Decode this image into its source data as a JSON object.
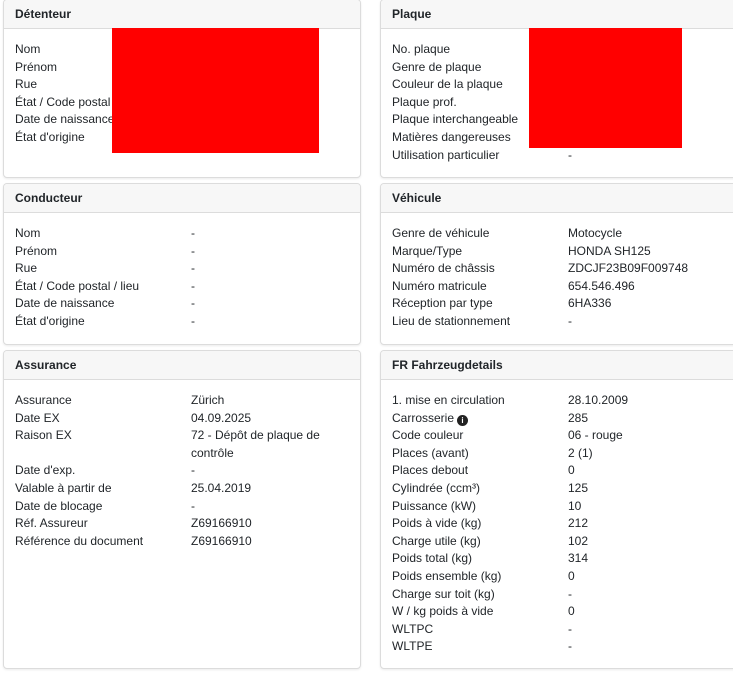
{
  "detenteur": {
    "title": "Détenteur",
    "rows": [
      {
        "label": "Nom",
        "value": ""
      },
      {
        "label": "Prénom",
        "value": ""
      },
      {
        "label": "Rue",
        "value": ""
      },
      {
        "label": "État / Code postal / lieu",
        "value": ""
      },
      {
        "label": "Date de naissance",
        "value": ""
      },
      {
        "label": "État d'origine",
        "value": ""
      }
    ]
  },
  "plaque": {
    "title": "Plaque",
    "rows": [
      {
        "label": "No. plaque",
        "value": ""
      },
      {
        "label": "Genre de plaque",
        "value": ""
      },
      {
        "label": "Couleur de la plaque",
        "value": ""
      },
      {
        "label": "Plaque prof.",
        "value": ""
      },
      {
        "label": "Plaque interchangeable",
        "value": ""
      },
      {
        "label": "Matières dangereuses",
        "value": ""
      },
      {
        "label": "Utilisation particulier",
        "value": "-"
      }
    ]
  },
  "conducteur": {
    "title": "Conducteur",
    "rows": [
      {
        "label": "Nom",
        "value": "-"
      },
      {
        "label": "Prénom",
        "value": "-"
      },
      {
        "label": "Rue",
        "value": "-"
      },
      {
        "label": "État / Code postal / lieu",
        "value": "-"
      },
      {
        "label": "Date de naissance",
        "value": "-"
      },
      {
        "label": "État d'origine",
        "value": "-"
      }
    ]
  },
  "vehicule": {
    "title": "Véhicule",
    "rows": [
      {
        "label": "Genre de véhicule",
        "value": "Motocycle"
      },
      {
        "label": "Marque/Type",
        "value": "HONDA SH125"
      },
      {
        "label": "Numéro de châssis",
        "value": "ZDCJF23B09F009748"
      },
      {
        "label": "Numéro matricule",
        "value": "654.546.496"
      },
      {
        "label": "Réception par type",
        "value": "6HA336"
      },
      {
        "label": "Lieu de stationnement",
        "value": "-"
      }
    ]
  },
  "assurance": {
    "title": "Assurance",
    "rows": [
      {
        "label": "Assurance",
        "value": "Zürich"
      },
      {
        "label": "Date EX",
        "value": "04.09.2025"
      },
      {
        "label": "Raison EX",
        "value": "72 - Dépôt de plaque de contrôle"
      },
      {
        "label": "Date d'exp.",
        "value": "-"
      },
      {
        "label": "Valable à partir de",
        "value": "25.04.2019"
      },
      {
        "label": "Date de blocage",
        "value": "-"
      },
      {
        "label": "Réf. Assureur",
        "value": "Z69166910"
      },
      {
        "label": "Référence du document",
        "value": "Z69166910"
      }
    ]
  },
  "fr": {
    "title": "FR Fahrzeugdetails",
    "info_icon": "info-circle-icon",
    "rows": [
      {
        "label": "1. mise en circulation",
        "value": "28.10.2009"
      },
      {
        "label": "Carrosserie",
        "value": "285"
      },
      {
        "label": "Code couleur",
        "value": "06 - rouge"
      },
      {
        "label": "Places (avant)",
        "value": "2 (1)"
      },
      {
        "label": "Places debout",
        "value": "0"
      },
      {
        "label": "Cylindrée (ccm³)",
        "value": "125"
      },
      {
        "label": "Puissance (kW)",
        "value": "10"
      },
      {
        "label": "Poids à vide (kg)",
        "value": "212"
      },
      {
        "label": "Charge utile (kg)",
        "value": "102"
      },
      {
        "label": "Poids total (kg)",
        "value": "314"
      },
      {
        "label": "Poids ensemble (kg)",
        "value": "0"
      },
      {
        "label": "Charge sur toit (kg)",
        "value": "-"
      },
      {
        "label": "W / kg poids à vide",
        "value": "0"
      },
      {
        "label": "WLTPC",
        "value": "-"
      },
      {
        "label": "WLTPE",
        "value": "-"
      }
    ]
  },
  "redaction_color": "#ff0000"
}
